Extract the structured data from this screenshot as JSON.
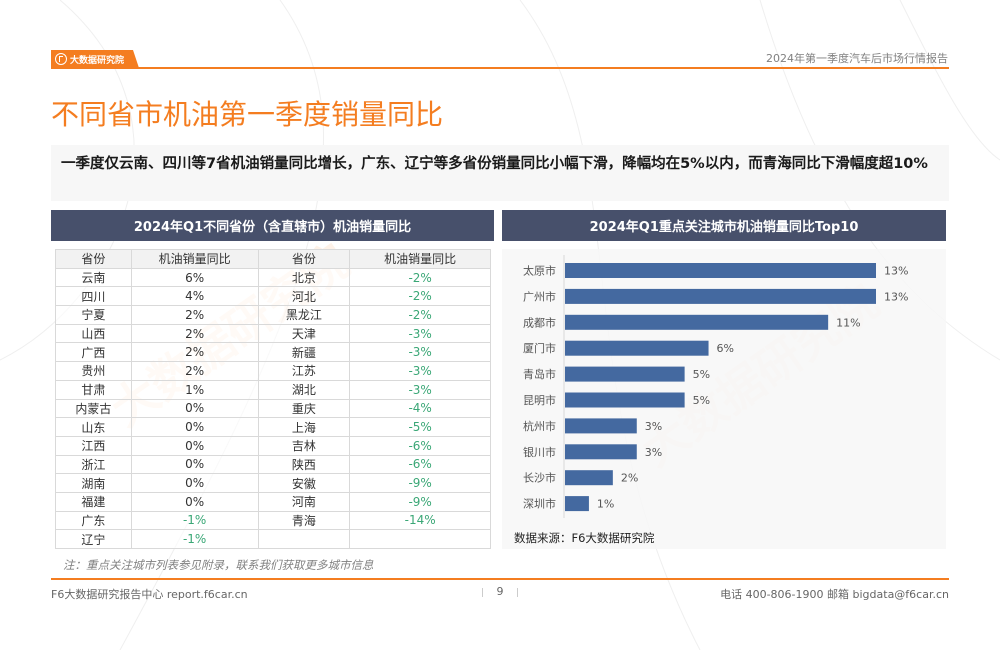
{
  "header": {
    "logo_text": "大数据研究院",
    "report_title": "2024年第一季度汽车后市场行情报告"
  },
  "page_title": "不同省市机油第一季度销量同比",
  "summary": "一季度仅云南、四川等7省机油销量同比增长，广东、辽宁等多省份销量同比小幅下滑，降幅均在5%以内，而青海同比下滑幅度超10%",
  "left_panel": {
    "title": "2024年Q1不同省份（含直辖市）机油销量同比",
    "headers": [
      "省份",
      "机油销量同比",
      "省份",
      "机油销量同比"
    ],
    "rows": [
      [
        "云南",
        "6%",
        "北京",
        "-2%"
      ],
      [
        "四川",
        "4%",
        "河北",
        "-2%"
      ],
      [
        "宁夏",
        "2%",
        "黑龙江",
        "-2%"
      ],
      [
        "山西",
        "2%",
        "天津",
        "-3%"
      ],
      [
        "广西",
        "2%",
        "新疆",
        "-3%"
      ],
      [
        "贵州",
        "2%",
        "江苏",
        "-3%"
      ],
      [
        "甘肃",
        "1%",
        "湖北",
        "-3%"
      ],
      [
        "内蒙古",
        "0%",
        "重庆",
        "-4%"
      ],
      [
        "山东",
        "0%",
        "上海",
        "-5%"
      ],
      [
        "江西",
        "0%",
        "吉林",
        "-6%"
      ],
      [
        "浙江",
        "0%",
        "陕西",
        "-6%"
      ],
      [
        "湖南",
        "0%",
        "安徽",
        "-9%"
      ],
      [
        "福建",
        "0%",
        "河南",
        "-9%"
      ],
      [
        "广东",
        "-1%",
        "青海",
        "-14%"
      ],
      [
        "辽宁",
        "-1%",
        "",
        ""
      ]
    ],
    "note": "注：重点关注城市列表参见附录，联系我们获取更多城市信息"
  },
  "right_panel": {
    "title": "2024年Q1重点关注城市机油销量同比Top10",
    "source": "数据来源：F6大数据研究院"
  },
  "chart_data": {
    "type": "bar",
    "orientation": "horizontal",
    "title": "2024年Q1重点关注城市机油销量同比Top10",
    "categories": [
      "太原市",
      "广州市",
      "成都市",
      "厦门市",
      "青岛市",
      "昆明市",
      "杭州市",
      "银川市",
      "长沙市",
      "深圳市"
    ],
    "values": [
      13,
      13,
      11,
      6,
      5,
      5,
      3,
      3,
      2,
      1
    ],
    "labels": [
      "13%",
      "13%",
      "11%",
      "6%",
      "5%",
      "5%",
      "3%",
      "3%",
      "2%",
      "1%"
    ],
    "unit": "%",
    "xlim": [
      0,
      13
    ],
    "grid": false,
    "bar_color": "#4469a0"
  },
  "colors": {
    "accent": "#f47d20",
    "panel_header": "#47506b",
    "negative": "#3aa776",
    "bar": "#4469a0"
  },
  "footer": {
    "left": "F6大数据研究报告中心 report.f6car.cn",
    "page": "9",
    "right": "电话 400-806-1900  邮箱 bigdata@f6car.cn"
  },
  "watermark": "大数据研究院"
}
